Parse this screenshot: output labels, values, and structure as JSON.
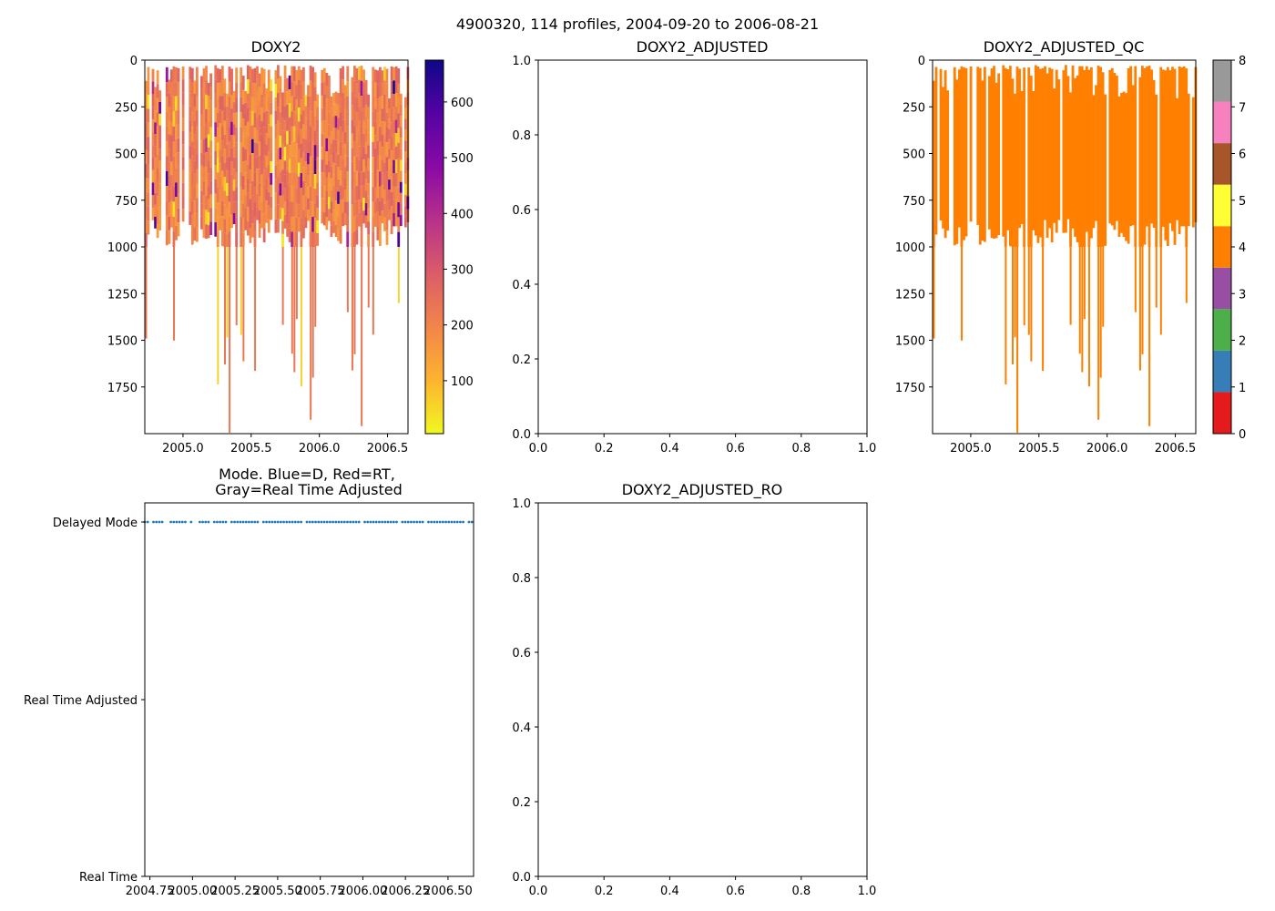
{
  "figure": {
    "suptitle": "4900320, 114 profiles, 2004-09-20 to 2006-08-21"
  },
  "chart_data": [
    {
      "id": "doxy2",
      "type": "heatmap",
      "title": "DOXY2",
      "ylim": [
        0,
        2000
      ],
      "ytick_labels": [
        "0",
        "250",
        "500",
        "750",
        "1000",
        "1250",
        "1500",
        "1750"
      ],
      "yticks": [
        0,
        250,
        500,
        750,
        1000,
        1250,
        1500,
        1750
      ],
      "xlim": [
        2004.72,
        2006.65
      ],
      "xticks": [
        2005.0,
        2005.5,
        2006.0,
        2006.5
      ],
      "xtick_labels": [
        "2005.0",
        "2005.5",
        "2006.0",
        "2006.5"
      ],
      "colorbar": {
        "colormap": "plasma_r",
        "range": [
          5,
          675
        ],
        "ticks": [
          100,
          200,
          300,
          400,
          500,
          600
        ],
        "tick_labels": [
          "100",
          "200",
          "300",
          "400",
          "500",
          "600"
        ]
      },
      "dominant_value_range": [
        150,
        280
      ],
      "profiles_shown": 114
    },
    {
      "id": "doxy2-adjusted",
      "type": "line",
      "title": "DOXY2_ADJUSTED",
      "xlim": [
        0,
        1
      ],
      "ylim": [
        0,
        1
      ],
      "xticks": [
        0,
        0.2,
        0.4,
        0.6,
        0.8,
        1
      ],
      "xtick_labels": [
        "0.0",
        "0.2",
        "0.4",
        "0.6",
        "0.8",
        "1.0"
      ],
      "yticks": [
        0,
        0.2,
        0.4,
        0.6,
        0.8,
        1
      ],
      "ytick_labels": [
        "0.0",
        "0.2",
        "0.4",
        "0.6",
        "0.8",
        "1.0"
      ],
      "series": []
    },
    {
      "id": "doxy2-adjusted-qc",
      "type": "heatmap",
      "title": "DOXY2_ADJUSTED_QC",
      "ylim": [
        0,
        2000
      ],
      "yticks": [
        0,
        250,
        500,
        750,
        1000,
        1250,
        1500,
        1750
      ],
      "ytick_labels": [
        "0",
        "250",
        "500",
        "750",
        "1000",
        "1250",
        "1500",
        "1750"
      ],
      "xlim": [
        2004.72,
        2006.65
      ],
      "xticks": [
        2005.0,
        2005.5,
        2006.0,
        2006.5
      ],
      "xtick_labels": [
        "2005.0",
        "2005.5",
        "2006.0",
        "2006.5"
      ],
      "value_shown": 4,
      "colorbar": {
        "range": [
          0,
          8
        ],
        "ticks": [
          0,
          1,
          2,
          3,
          4,
          5,
          6,
          7,
          8
        ],
        "tick_labels": [
          "0",
          "1",
          "2",
          "3",
          "4",
          "5",
          "6",
          "7",
          "8"
        ],
        "colors": [
          "#e41a1c",
          "#377eb8",
          "#4daf4a",
          "#984ea3",
          "#ff7f00",
          "#ffff33",
          "#a65628",
          "#f781bf",
          "#999999"
        ]
      }
    },
    {
      "id": "mode",
      "type": "scatter",
      "title_line1": "Mode. Blue=D, Red=RT,",
      "title_line2": "Gray=Real Time Adjusted",
      "xlim": [
        2004.72,
        2006.65
      ],
      "xticks": [
        2004.75,
        2005.0,
        2005.25,
        2005.5,
        2005.75,
        2006.0,
        2006.25,
        2006.5
      ],
      "xtick_labels": [
        "2004.75",
        "2005.00",
        "2005.25",
        "2005.50",
        "2005.75",
        "2006.00",
        "2006.25",
        "2006.50"
      ],
      "ylim": [
        0,
        2
      ],
      "categories": [
        "Real Time",
        "Real Time Adjusted",
        "Delayed Mode"
      ],
      "mode_value": 2,
      "point_color": "#1f77b4",
      "count": 114
    },
    {
      "id": "doxy2-adjusted-ro",
      "type": "line",
      "title": "DOXY2_ADJUSTED_RO",
      "xlim": [
        0,
        1
      ],
      "ylim": [
        0,
        1
      ],
      "xticks": [
        0,
        0.2,
        0.4,
        0.6,
        0.8,
        1
      ],
      "xtick_labels": [
        "0.0",
        "0.2",
        "0.4",
        "0.6",
        "0.8",
        "1.0"
      ],
      "yticks": [
        0,
        0.2,
        0.4,
        0.6,
        0.8,
        1
      ],
      "ytick_labels": [
        "0.0",
        "0.2",
        "0.4",
        "0.6",
        "0.8",
        "1.0"
      ],
      "series": []
    }
  ]
}
